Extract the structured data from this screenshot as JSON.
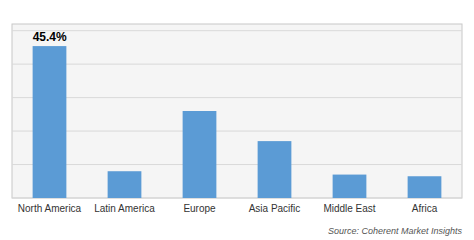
{
  "chart_data": {
    "type": "bar",
    "categories": [
      "North America",
      "Latin America",
      "Europe",
      "Asia Pacific",
      "Middle East",
      "Africa"
    ],
    "values": [
      45.4,
      8.0,
      26.0,
      17.0,
      7.0,
      6.5
    ],
    "color": "#5b9bd5",
    "annotation": "45.4%",
    "source": "Source: Coherent Market Insights",
    "ylim": [
      0,
      52
    ],
    "yticks": [
      0,
      10,
      20,
      30,
      40,
      50
    ],
    "grid": true,
    "tick_labels": "x"
  }
}
